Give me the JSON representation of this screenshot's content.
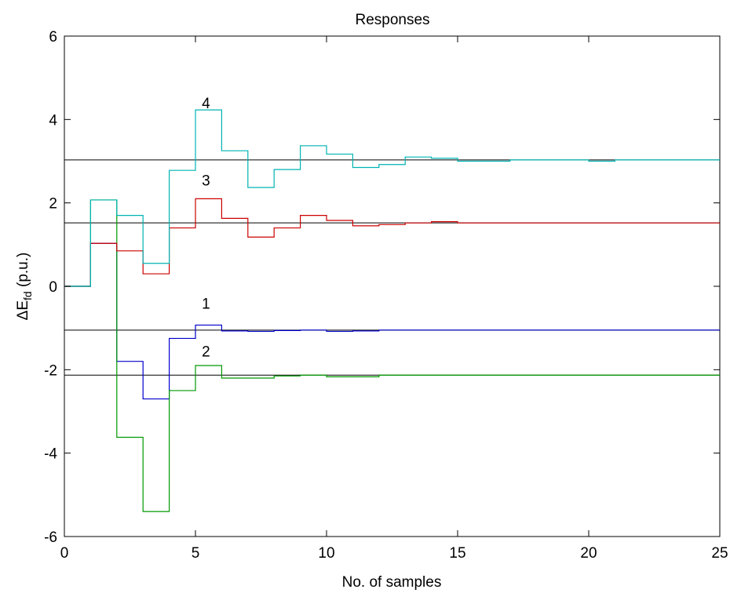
{
  "chart_data": {
    "type": "line",
    "title": "Responses",
    "xlabel": "No. of samples",
    "ylabel_main": "ΔE",
    "ylabel_sub": "fd",
    "ylabel_unit": " (p.u.)",
    "xlim": [
      0,
      25
    ],
    "ylim": [
      -6,
      6
    ],
    "x_ticks": [
      0,
      5,
      10,
      15,
      20,
      25
    ],
    "y_ticks": [
      -6,
      -4,
      -2,
      0,
      2,
      4,
      6
    ],
    "x_tick_labels": [
      "0",
      "5",
      "10",
      "15",
      "20",
      "25"
    ],
    "y_tick_labels": [
      "-6",
      "-4",
      "-2",
      "0",
      "2",
      "4",
      "6"
    ],
    "grid": false,
    "step_style": "post",
    "reference_lines": [
      {
        "y": -1.05,
        "color": "#000000"
      },
      {
        "y": -2.13,
        "color": "#000000"
      },
      {
        "y": 1.52,
        "color": "#000000"
      },
      {
        "y": 3.03,
        "color": "#000000"
      }
    ],
    "series": [
      {
        "label": "1",
        "label_x": 5.4,
        "label_y": -0.4,
        "color": "#0000cc",
        "x": [
          0,
          1,
          2,
          3,
          4,
          5,
          6,
          7,
          8,
          9,
          10,
          11,
          12,
          13,
          14,
          15,
          16,
          17,
          18,
          19,
          20,
          21,
          22,
          23,
          24,
          25
        ],
        "y": [
          0,
          1.03,
          -1.8,
          -2.7,
          -1.25,
          -0.93,
          -1.07,
          -1.08,
          -1.06,
          -1.05,
          -1.08,
          -1.07,
          -1.05,
          -1.05,
          -1.05,
          -1.05,
          -1.05,
          -1.05,
          -1.05,
          -1.05,
          -1.05,
          -1.05,
          -1.05,
          -1.05,
          -1.05,
          -1.05
        ]
      },
      {
        "label": "2",
        "label_x": 5.4,
        "label_y": -1.55,
        "color": "#009900",
        "x": [
          0,
          1,
          2,
          3,
          4,
          5,
          6,
          7,
          8,
          9,
          10,
          11,
          12,
          13,
          14,
          15,
          16,
          17,
          18,
          19,
          20,
          21,
          22,
          23,
          24,
          25
        ],
        "y": [
          0,
          2.07,
          -3.62,
          -5.4,
          -2.5,
          -1.9,
          -2.2,
          -2.2,
          -2.15,
          -2.13,
          -2.17,
          -2.17,
          -2.13,
          -2.13,
          -2.13,
          -2.13,
          -2.13,
          -2.13,
          -2.13,
          -2.13,
          -2.13,
          -2.13,
          -2.13,
          -2.13,
          -2.13,
          -2.13
        ]
      },
      {
        "label": "3",
        "label_x": 5.4,
        "label_y": 2.55,
        "color": "#cc0000",
        "x": [
          0,
          1,
          2,
          3,
          4,
          5,
          6,
          7,
          8,
          9,
          10,
          11,
          12,
          13,
          14,
          15,
          16,
          17,
          18,
          19,
          20,
          21,
          22,
          23,
          24,
          25
        ],
        "y": [
          0,
          1.03,
          0.85,
          0.3,
          1.4,
          2.1,
          1.63,
          1.18,
          1.4,
          1.7,
          1.58,
          1.45,
          1.48,
          1.52,
          1.55,
          1.52,
          1.52,
          1.52,
          1.52,
          1.52,
          1.52,
          1.52,
          1.52,
          1.52,
          1.52,
          1.52
        ]
      },
      {
        "label": "4",
        "label_x": 5.4,
        "label_y": 4.4,
        "color": "#00b3b3",
        "x": [
          0,
          1,
          2,
          3,
          4,
          5,
          6,
          7,
          8,
          9,
          10,
          11,
          12,
          13,
          14,
          15,
          16,
          17,
          18,
          19,
          20,
          21,
          22,
          23,
          24,
          25
        ],
        "y": [
          0,
          2.07,
          1.7,
          0.55,
          2.78,
          4.23,
          3.25,
          2.37,
          2.8,
          3.37,
          3.17,
          2.85,
          2.92,
          3.1,
          3.07,
          3.0,
          3.0,
          3.03,
          3.03,
          3.03,
          3.0,
          3.03,
          3.03,
          3.03,
          3.03,
          3.03
        ]
      }
    ]
  }
}
